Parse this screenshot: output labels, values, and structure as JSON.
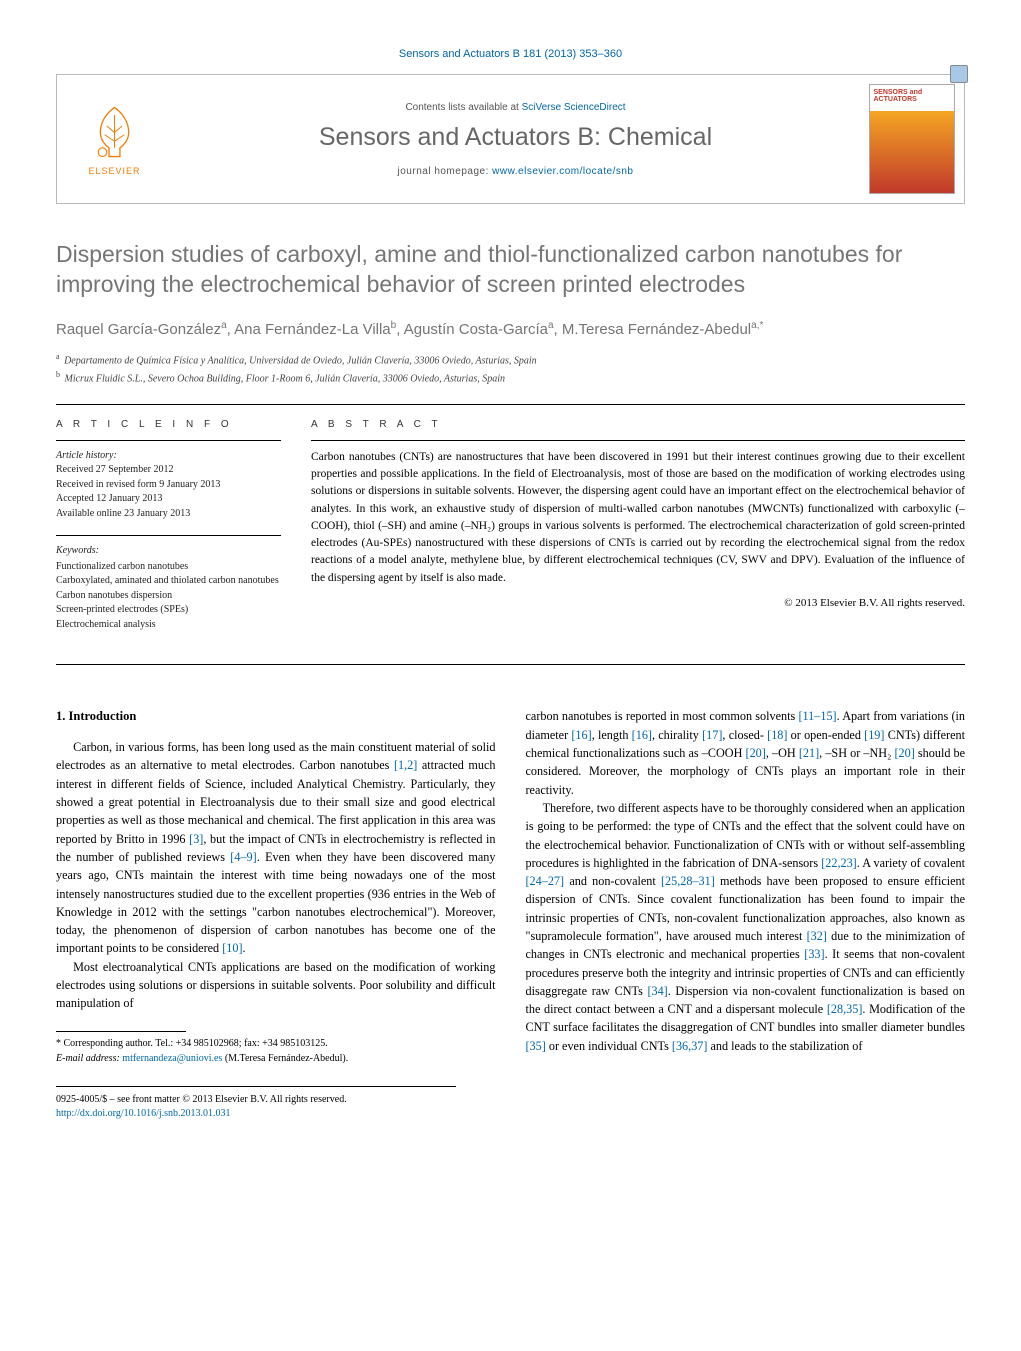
{
  "header": {
    "citation": "Sensors and Actuators B 181 (2013) 353–360",
    "contents_prefix": "Contents lists available at ",
    "contents_link": "SciVerse ScienceDirect",
    "journal_title": "Sensors and Actuators B: Chemical",
    "homepage_prefix": "journal homepage: ",
    "homepage_link": "www.elsevier.com/locate/snb",
    "publisher": "ELSEVIER",
    "cover_label": "SENSORS and ACTUATORS"
  },
  "article": {
    "title": "Dispersion studies of carboxyl, amine and thiol-functionalized carbon nanotubes for improving the electrochemical behavior of screen printed electrodes",
    "authors_html": "Raquel García-González<sup>a</sup>, Ana Fernández-La Villa<sup>b</sup>, Agustín Costa-García<sup>a</sup>, M.Teresa Fernández-Abedul<sup>a,*</sup>",
    "affiliations": {
      "a": "Departamento de Química Física y Analítica, Universidad de Oviedo, Julián Clavería, 33006 Oviedo, Asturias, Spain",
      "b": "Micrux Fluidic S.L., Severo Ochoa Building, Floor 1-Room 6, Julián Clavería, 33006 Oviedo, Asturias, Spain"
    }
  },
  "info": {
    "label": "a r t i c l e   i n f o",
    "history_label": "Article history:",
    "received": "Received 27 September 2012",
    "revised": "Received in revised form 9 January 2013",
    "accepted": "Accepted 12 January 2013",
    "online": "Available online 23 January 2013",
    "keywords_label": "Keywords:",
    "keywords": [
      "Functionalized carbon nanotubes",
      "Carboxylated, aminated and thiolated carbon nanotubes",
      "Carbon nanotubes dispersion",
      "Screen-printed electrodes (SPEs)",
      "Electrochemical analysis"
    ]
  },
  "abstract": {
    "label": "a b s t r a c t",
    "text": "Carbon nanotubes (CNTs) are nanostructures that have been discovered in 1991 but their interest continues growing due to their excellent properties and possible applications. In the field of Electroanalysis, most of those are based on the modification of working electrodes using solutions or dispersions in suitable solvents. However, the dispersing agent could have an important effect on the electrochemical behavior of analytes. In this work, an exhaustive study of dispersion of multi-walled carbon nanotubes (MWCNTs) functionalized with carboxylic (–COOH), thiol (–SH) and amine (–NH₂) groups in various solvents is performed. The electrochemical characterization of gold screen-printed electrodes (Au-SPEs) nanostructured with these dispersions of CNTs is carried out by recording the electrochemical signal from the redox reactions of a model analyte, methylene blue, by different electrochemical techniques (CV, SWV and DPV). Evaluation of the influence of the dispersing agent by itself is also made.",
    "copyright": "© 2013 Elsevier B.V. All rights reserved."
  },
  "body": {
    "section_heading": "1.  Introduction",
    "p1": "Carbon, in various forms, has been long used as the main constituent material of solid electrodes as an alternative to metal electrodes. Carbon nanotubes [1,2] attracted much interest in different fields of Science, included Analytical Chemistry. Particularly, they showed a great potential in Electroanalysis due to their small size and good electrical properties as well as those mechanical and chemical. The first application in this area was reported by Britto in 1996 [3], but the impact of CNTs in electrochemistry is reflected in the number of published reviews [4–9]. Even when they have been discovered many years ago, CNTs maintain the interest with time being nowadays one of the most intensely nanostructures studied due to the excellent properties (936 entries in the Web of Knowledge in 2012 with the settings \"carbon nanotubes electrochemical\"). Moreover, today, the phenomenon of dispersion of carbon nanotubes has become one of the important points to be considered [10].",
    "p2": "Most electroanalytical CNTs applications are based on the modification of working electrodes using solutions or dispersions in suitable solvents. Poor solubility and difficult manipulation of",
    "p3": "carbon nanotubes is reported in most common solvents [11–15]. Apart from variations (in diameter [16], length [16], chirality [17], closed- [18] or open-ended [19] CNTs) different chemical functionalizations such as –COOH [20], –OH [21], –SH or –NH₂ [20] should be considered. Moreover, the morphology of CNTs plays an important role in their reactivity.",
    "p4": "Therefore, two different aspects have to be thoroughly considered when an application is going to be performed: the type of CNTs and the effect that the solvent could have on the electrochemical behavior. Functionalization of CNTs with or without self-assembling procedures is highlighted in the fabrication of DNA-sensors [22,23]. A variety of covalent [24–27] and non-covalent [25,28–31] methods have been proposed to ensure efficient dispersion of CNTs. Since covalent functionalization has been found to impair the intrinsic properties of CNTs, non-covalent functionalization approaches, also known as \"supramolecule formation\", have aroused much interest [32] due to the minimization of changes in CNTs electronic and mechanical properties [33]. It seems that non-covalent procedures preserve both the integrity and intrinsic properties of CNTs and can efficiently disaggregate raw CNTs [34]. Dispersion via non-covalent functionalization is based on the direct contact between a CNT and a dispersant molecule [28,35]. Modification of the CNT surface facilitates the disaggregation of CNT bundles into smaller diameter bundles [35] or even individual CNTs [36,37] and leads to the stabilization of"
  },
  "footnotes": {
    "corr": "Corresponding author. Tel.: +34 985102968; fax: +34 985103125.",
    "email_label": "E-mail address:",
    "email": "mtfernandeza@uniovi.es",
    "email_person": "(M.Teresa Fernández-Abedul)."
  },
  "footer": {
    "issn_line": "0925-4005/$ – see front matter © 2013 Elsevier B.V. All rights reserved.",
    "doi_link": "http://dx.doi.org/10.1016/j.snb.2013.01.031"
  },
  "colors": {
    "link": "#0066a8",
    "title_gray": "#757575",
    "elsevier_orange": "#f57c00"
  }
}
